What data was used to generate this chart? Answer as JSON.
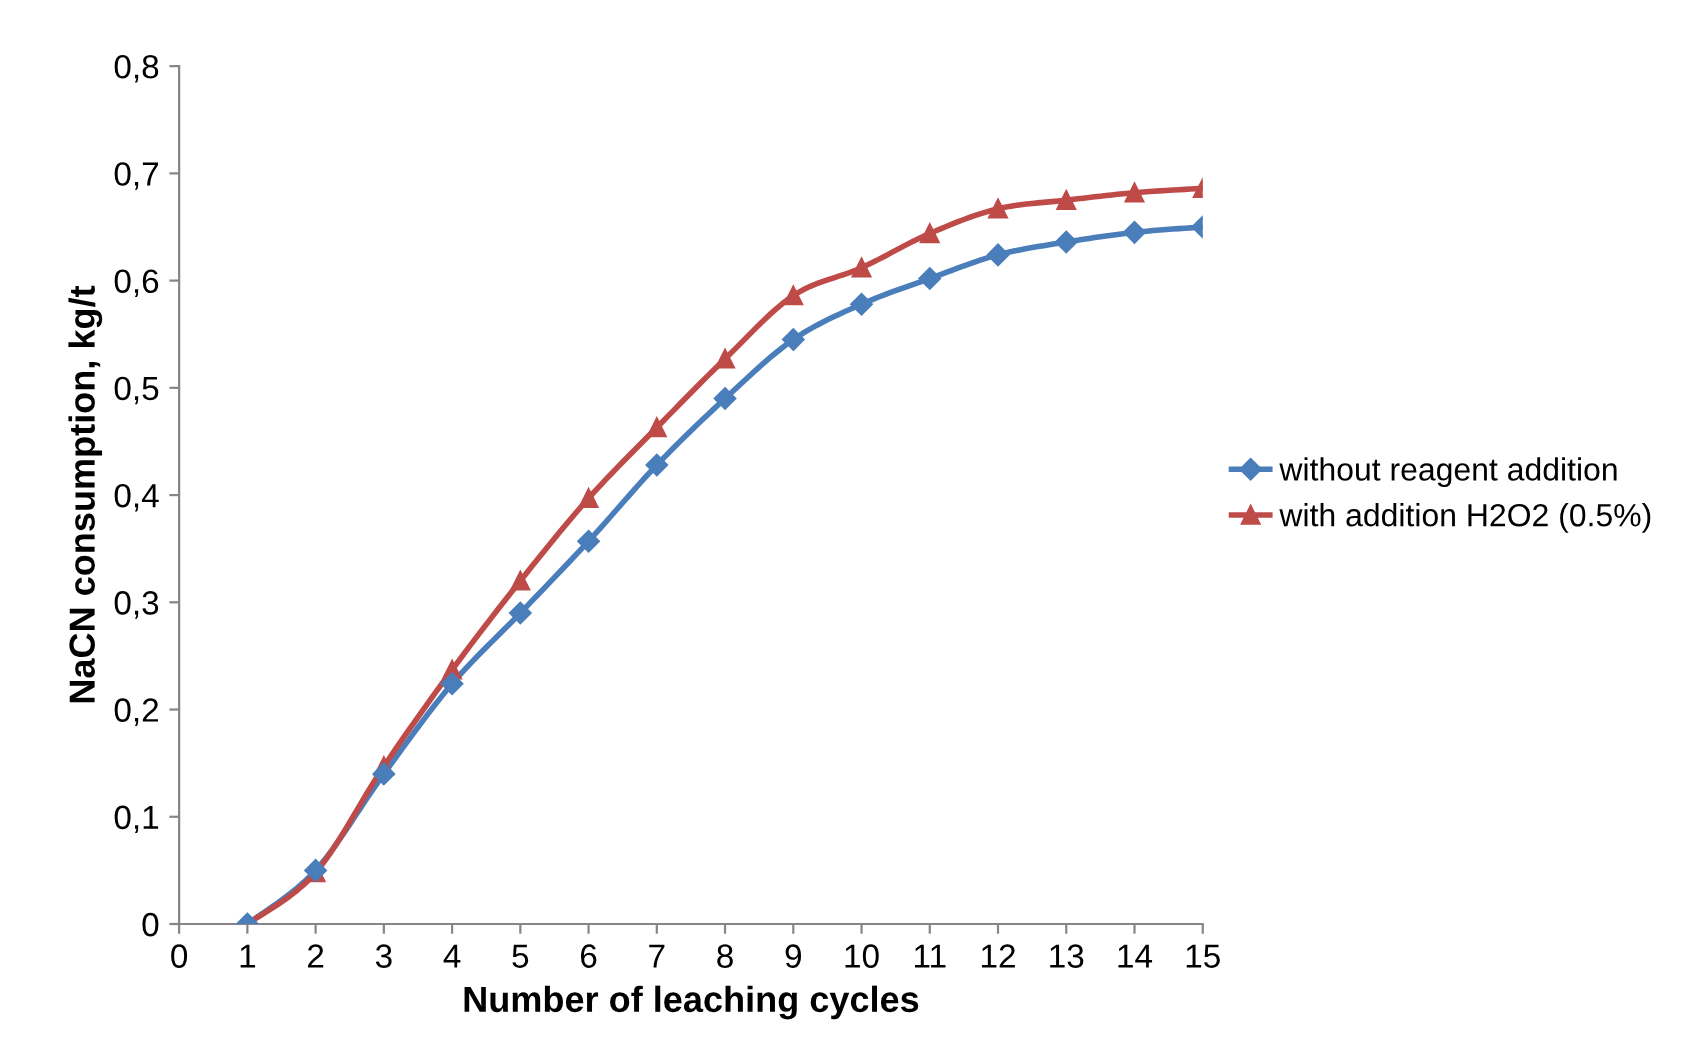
{
  "chart_data": {
    "type": "line",
    "xlabel": "Number of leaching cycles",
    "ylabel": "NaCN consumption, kg/t",
    "x": [
      1,
      2,
      3,
      4,
      5,
      6,
      7,
      8,
      9,
      10,
      11,
      12,
      13,
      14,
      15
    ],
    "series": [
      {
        "name": "without reagent addition",
        "color": "#4a7ebb",
        "marker": "diamond",
        "values": [
          0,
          0.05,
          0.14,
          0.224,
          0.29,
          0.357,
          0.428,
          0.49,
          0.545,
          0.578,
          0.602,
          0.624,
          0.636,
          0.645,
          0.65
        ]
      },
      {
        "name": "with addition H2O2 (0.5%)",
        "color": "#be4b48",
        "marker": "triangle",
        "values": [
          0,
          0.048,
          0.147,
          0.237,
          0.32,
          0.397,
          0.463,
          0.527,
          0.586,
          0.612,
          0.644,
          0.667,
          0.675,
          0.682,
          0.686
        ]
      }
    ],
    "xlim": [
      0,
      15
    ],
    "xticks": [
      0,
      1,
      2,
      3,
      4,
      5,
      6,
      7,
      8,
      9,
      10,
      11,
      12,
      13,
      14,
      15
    ],
    "ylim": [
      0,
      0.8
    ],
    "yticks": [
      0,
      {
        "value": 0.1,
        "label": "0,1"
      },
      {
        "value": 0.2,
        "label": "0,2"
      },
      {
        "value": 0.3,
        "label": "0,3"
      },
      {
        "value": 0.4,
        "label": "0,4"
      },
      {
        "value": 0.5,
        "label": "0,5"
      },
      {
        "value": 0.6,
        "label": "0,6"
      },
      {
        "value": 0.7,
        "label": "0,7"
      },
      {
        "value": 0.8,
        "label": "0,8"
      }
    ],
    "grid": false,
    "legend": "right",
    "line_style": "solid"
  }
}
